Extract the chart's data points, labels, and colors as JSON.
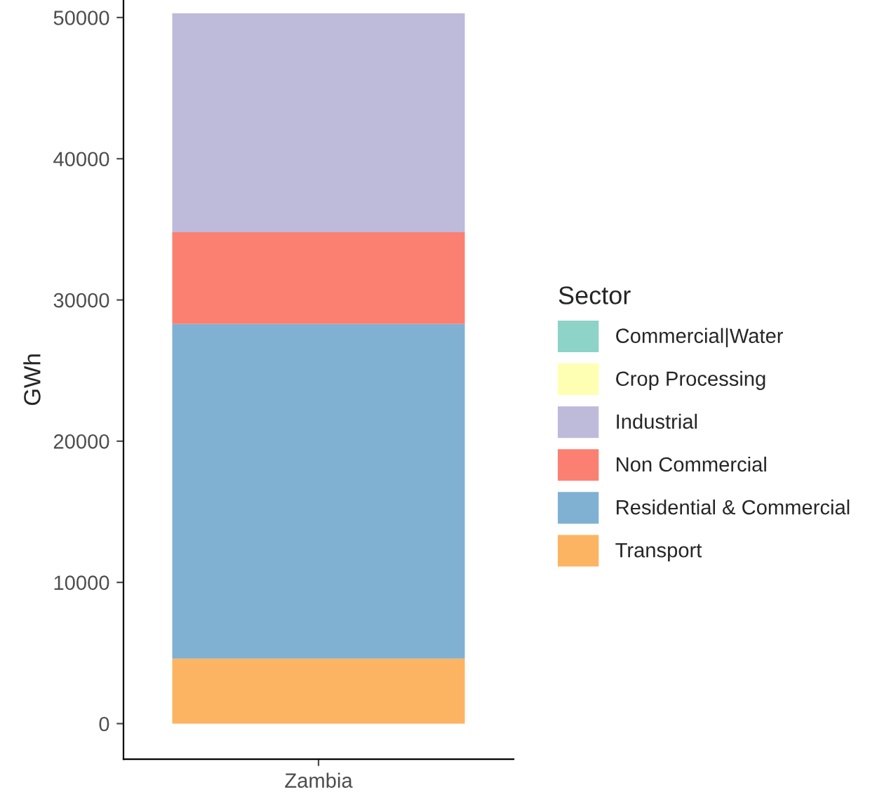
{
  "chart_data": {
    "type": "bar",
    "stacked": true,
    "categories": [
      "Zambia"
    ],
    "ylabel": "GWh",
    "legend_title": "Sector",
    "legend": "right",
    "ylim": [
      -2515,
      51240
    ],
    "yticks": [
      0,
      10000,
      20000,
      30000,
      40000,
      50000
    ],
    "grid": false,
    "series": [
      {
        "name": "Transport",
        "color": "#fdb462",
        "values": [
          4600
        ]
      },
      {
        "name": "Residential & Commercial",
        "color": "#80b1d3",
        "values": [
          23700
        ]
      },
      {
        "name": "Non Commercial",
        "color": "#fb8072",
        "values": [
          6500
        ]
      },
      {
        "name": "Industrial",
        "color": "#bebada",
        "values": [
          15500
        ]
      },
      {
        "name": "Crop Processing",
        "color": "#ffffb3",
        "values": [
          0
        ]
      },
      {
        "name": "Commercial|Water",
        "color": "#8dd3c7",
        "values": [
          0
        ]
      }
    ]
  }
}
